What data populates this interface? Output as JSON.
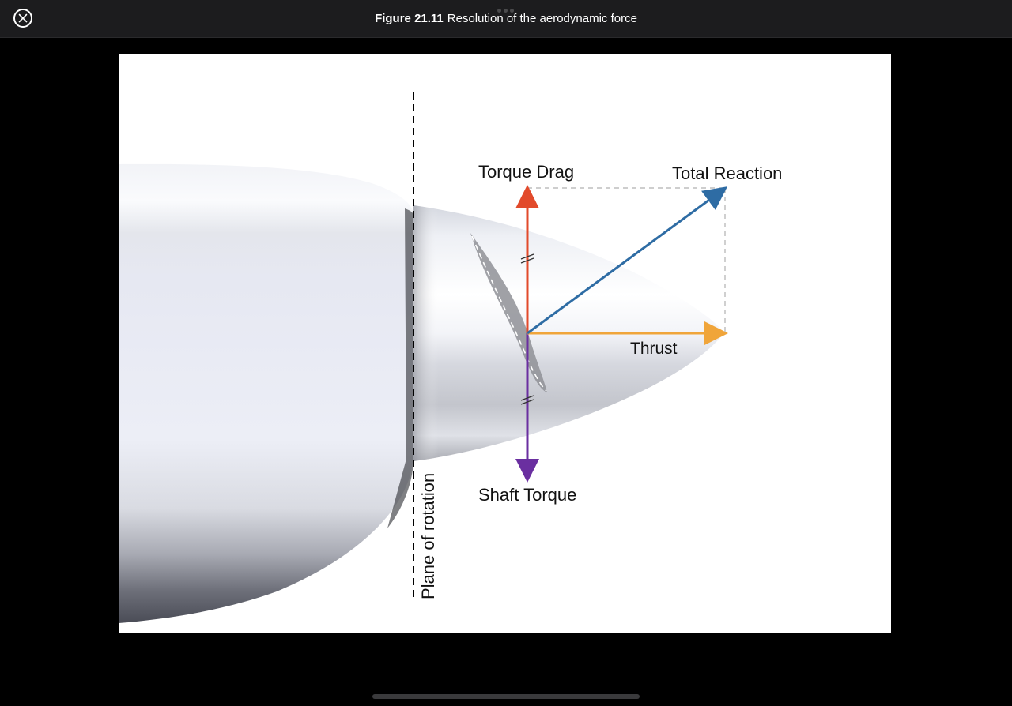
{
  "header": {
    "close_icon": "close-circle-icon",
    "figure_number": "Figure 21.11",
    "figure_title": "Resolution of the aerodynamic force"
  },
  "diagram": {
    "labels": {
      "torque_drag": "Torque Drag",
      "total_reaction": "Total Reaction",
      "thrust": "Thrust",
      "shaft_torque": "Shaft Torque",
      "plane_of_rotation": "Plane of rotation"
    },
    "colors": {
      "torque_drag": "#e24a2b",
      "total_reaction": "#2e6ca4",
      "thrust": "#f0a53a",
      "shaft_torque": "#6a2fa0",
      "plane_line": "#000000",
      "construction_lines": "#b0b0b0"
    }
  }
}
